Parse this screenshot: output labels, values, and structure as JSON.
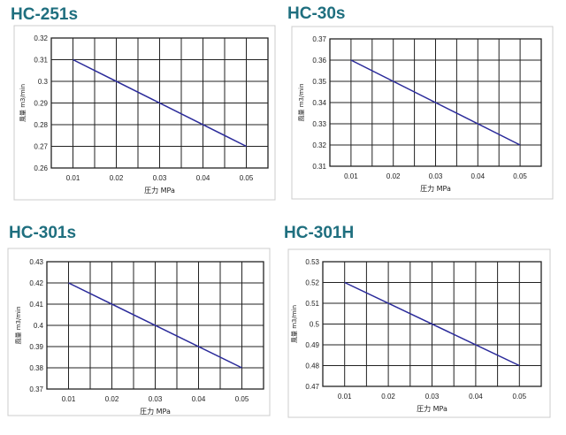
{
  "chart_data": [
    {
      "type": "line",
      "title": "HC-251s",
      "xlabel": "圧力  MPa",
      "ylabel": "風量  m3/min",
      "x": [
        0.01,
        0.05
      ],
      "y": [
        0.31,
        0.27
      ],
      "xlim": [
        0.005,
        0.055
      ],
      "ylim": [
        0.26,
        0.32
      ],
      "xticks": [
        "0.01",
        "0.02",
        "0.03",
        "0.04",
        "0.05"
      ],
      "yticks": [
        "0.26",
        "0.27",
        "0.28",
        "0.29",
        "0.3",
        "0.31",
        "0.32"
      ],
      "grid": true,
      "line_color": "#2a2a9a"
    },
    {
      "type": "line",
      "title": "HC-30s",
      "xlabel": "圧力  MPa",
      "ylabel": "風量  m3/min",
      "x": [
        0.01,
        0.05
      ],
      "y": [
        0.36,
        0.32
      ],
      "xlim": [
        0.005,
        0.055
      ],
      "ylim": [
        0.31,
        0.37
      ],
      "xticks": [
        "0.01",
        "0.02",
        "0.03",
        "0.04",
        "0.05"
      ],
      "yticks": [
        "0.31",
        "0.32",
        "0.33",
        "0.34",
        "0.35",
        "0.36",
        "0.37"
      ],
      "grid": true,
      "line_color": "#2a2a9a"
    },
    {
      "type": "line",
      "title": "HC-301s",
      "xlabel": "圧力  MPa",
      "ylabel": "風量  m3/min",
      "x": [
        0.01,
        0.05
      ],
      "y": [
        0.42,
        0.38
      ],
      "xlim": [
        0.005,
        0.055
      ],
      "ylim": [
        0.37,
        0.43
      ],
      "xticks": [
        "0.01",
        "0.02",
        "0.03",
        "0.04",
        "0.05"
      ],
      "yticks": [
        "0.37",
        "0.38",
        "0.39",
        "0.4",
        "0.41",
        "0.42",
        "0.43"
      ],
      "grid": true,
      "line_color": "#2a2a9a"
    },
    {
      "type": "line",
      "title": "HC-301H",
      "xlabel": "圧力  MPa",
      "ylabel": "風量  m3/min",
      "x": [
        0.01,
        0.05
      ],
      "y": [
        0.52,
        0.48
      ],
      "xlim": [
        0.005,
        0.055
      ],
      "ylim": [
        0.47,
        0.53
      ],
      "xticks": [
        "0.01",
        "0.02",
        "0.03",
        "0.04",
        "0.05"
      ],
      "yticks": [
        "0.47",
        "0.48",
        "0.49",
        "0.5",
        "0.51",
        "0.52",
        "0.53"
      ],
      "grid": true,
      "line_color": "#2a2a9a"
    }
  ]
}
